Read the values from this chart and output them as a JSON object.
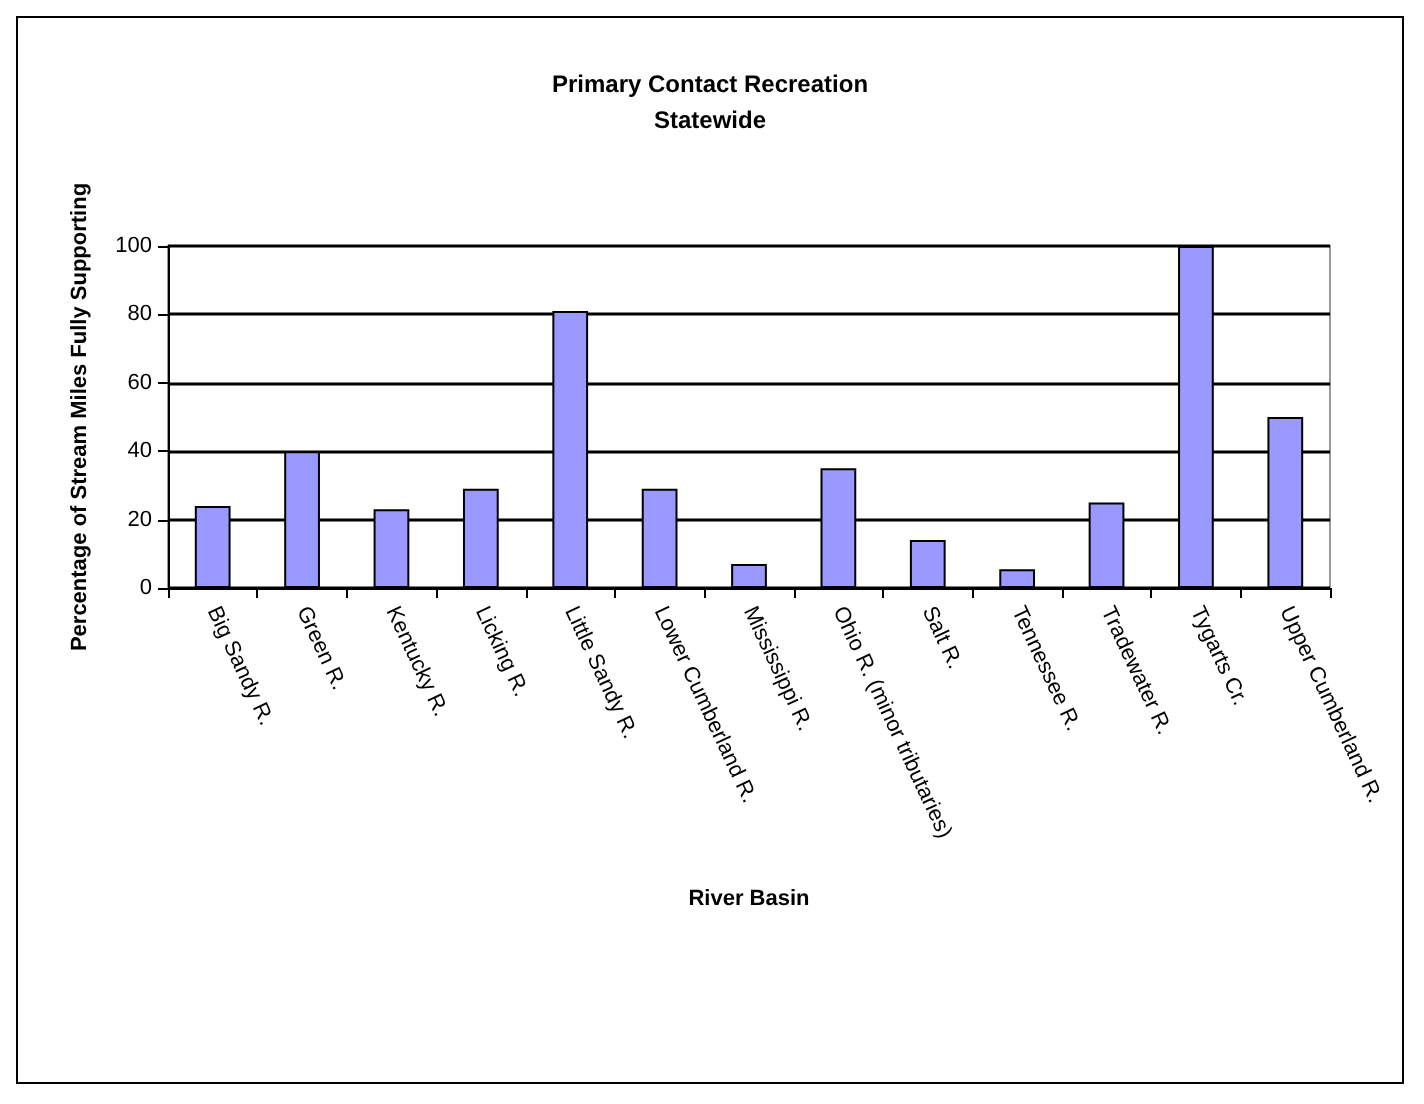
{
  "chart_data": {
    "type": "bar",
    "title": "Primary Contact Recreation",
    "subtitle": "Statewide",
    "xlabel": "River Basin",
    "ylabel": "Percentage of Stream Miles Fully Supporting",
    "categories": [
      "Big Sandy R.",
      "Green R.",
      "Kentucky R.",
      "Licking R.",
      "Little Sandy R.",
      "Lower Cumberland R.",
      "Mississippi R.",
      "Ohio R. (minor tributaries)",
      "Salt R.",
      "Tennessee R.",
      "Tradewater R.",
      "Tygarts Cr.",
      "Upper Cumberland R."
    ],
    "values": [
      24,
      40,
      23,
      29,
      81,
      29,
      7,
      35,
      14,
      5.5,
      25,
      100,
      50
    ],
    "color": "#9999ff",
    "ylim": [
      0,
      100
    ],
    "yticks": [
      0,
      20,
      40,
      60,
      80,
      100
    ],
    "grid": "y"
  }
}
